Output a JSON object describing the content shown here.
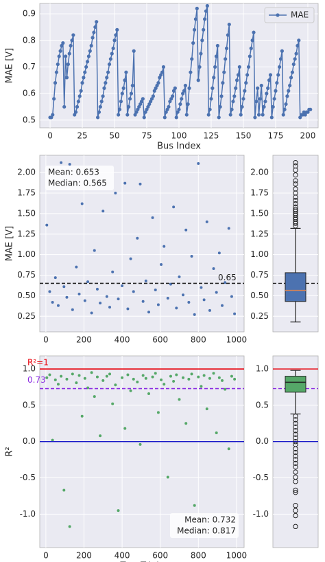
{
  "chart_data": [
    {
      "type": "line",
      "xlabel": "Bus Index",
      "ylabel": "MAE [V]",
      "x": [
        0,
        1,
        2,
        3,
        4,
        5,
        6,
        7,
        8,
        9,
        10,
        11,
        12,
        13,
        14,
        15,
        16,
        17,
        18,
        19,
        20,
        21,
        22,
        23,
        24,
        25,
        26,
        27,
        28,
        29,
        30,
        31,
        32,
        33,
        34,
        35,
        36,
        37,
        38,
        39,
        40,
        41,
        42,
        43,
        44,
        45,
        46,
        47,
        48,
        49,
        50,
        51,
        52,
        53,
        54,
        55,
        56,
        57,
        58,
        59,
        60,
        61,
        62,
        63,
        64,
        65,
        66,
        67,
        68,
        69,
        70,
        71,
        72,
        73,
        74,
        75,
        76,
        77,
        78,
        79,
        80,
        81,
        82,
        83,
        84,
        85,
        86,
        87,
        88,
        89,
        90,
        91,
        92,
        93,
        94,
        95,
        96,
        97,
        98,
        99,
        100,
        101,
        102,
        103,
        104,
        105,
        106,
        107,
        108,
        109,
        110,
        111,
        112,
        113,
        114,
        115,
        116,
        117,
        118,
        119,
        120,
        121,
        122,
        123,
        124,
        125,
        126,
        127,
        128,
        129,
        130,
        131,
        132,
        133,
        134,
        135,
        136,
        137,
        138,
        139,
        140,
        141,
        142,
        143,
        144,
        145,
        146,
        147,
        148,
        149,
        150,
        151,
        152,
        153,
        154,
        155,
        156,
        157,
        158,
        159,
        160,
        161,
        162,
        163,
        164,
        165,
        166,
        167,
        168,
        169,
        170,
        171,
        172,
        173,
        174,
        175,
        176,
        177,
        178,
        179,
        180,
        181,
        182,
        183,
        184,
        185,
        186,
        187,
        188,
        189,
        190,
        191,
        192,
        193,
        194,
        195,
        196,
        197,
        198,
        199,
        200,
        201,
        202
      ],
      "series": [
        {
          "name": "MAE",
          "color": "#4c72b0",
          "values": [
            0.51,
            0.51,
            0.52,
            0.58,
            0.64,
            0.68,
            0.71,
            0.74,
            0.76,
            0.78,
            0.79,
            0.55,
            0.74,
            0.66,
            0.71,
            0.75,
            0.78,
            0.8,
            0.82,
            0.52,
            0.53,
            0.55,
            0.57,
            0.59,
            0.61,
            0.64,
            0.66,
            0.68,
            0.7,
            0.72,
            0.74,
            0.76,
            0.78,
            0.81,
            0.83,
            0.85,
            0.87,
            0.51,
            0.53,
            0.55,
            0.57,
            0.59,
            0.62,
            0.64,
            0.66,
            0.68,
            0.71,
            0.73,
            0.75,
            0.77,
            0.8,
            0.82,
            0.84,
            0.52,
            0.54,
            0.57,
            0.6,
            0.62,
            0.65,
            0.68,
            0.52,
            0.55,
            0.58,
            0.6,
            0.63,
            0.76,
            0.52,
            0.53,
            0.54,
            0.55,
            0.56,
            0.57,
            0.58,
            0.51,
            0.53,
            0.54,
            0.55,
            0.56,
            0.57,
            0.58,
            0.59,
            0.61,
            0.62,
            0.63,
            0.64,
            0.66,
            0.67,
            0.68,
            0.7,
            0.51,
            0.53,
            0.54,
            0.55,
            0.57,
            0.58,
            0.59,
            0.61,
            0.62,
            0.51,
            0.53,
            0.54,
            0.56,
            0.58,
            0.6,
            0.61,
            0.63,
            0.52,
            0.56,
            0.62,
            0.68,
            0.73,
            0.79,
            0.84,
            0.88,
            0.92,
            0.65,
            0.7,
            0.75,
            0.8,
            0.84,
            0.88,
            0.91,
            0.93,
            0.52,
            0.54,
            0.58,
            0.62,
            0.66,
            0.7,
            0.74,
            0.78,
            0.51,
            0.55,
            0.59,
            0.64,
            0.68,
            0.73,
            0.77,
            0.82,
            0.86,
            0.52,
            0.54,
            0.57,
            0.59,
            0.62,
            0.65,
            0.67,
            0.7,
            0.52,
            0.55,
            0.58,
            0.61,
            0.64,
            0.67,
            0.7,
            0.74,
            0.77,
            0.8,
            0.83,
            0.51,
            0.57,
            0.62,
            0.52,
            0.58,
            0.63,
            0.52,
            0.55,
            0.57,
            0.6,
            0.62,
            0.65,
            0.67,
            0.51,
            0.55,
            0.58,
            0.61,
            0.64,
            0.67,
            0.7,
            0.73,
            0.76,
            0.52,
            0.54,
            0.56,
            0.59,
            0.61,
            0.63,
            0.66,
            0.68,
            0.71,
            0.73,
            0.75,
            0.78,
            0.8,
            0.51,
            0.52,
            0.52,
            0.53,
            0.52,
            0.53,
            0.53,
            0.54,
            0.54
          ]
        }
      ],
      "xlim": [
        -8,
        208
      ],
      "ylim": [
        0.471,
        0.939
      ],
      "xticks": [
        0,
        25,
        50,
        75,
        100,
        125,
        150,
        175,
        200
      ],
      "yticks": [
        0.5,
        0.6,
        0.7,
        0.8,
        0.9
      ],
      "grid": true,
      "legend": "upper right"
    },
    {
      "type": "scatter",
      "ylabel": "MAE [V]",
      "color": "#4c72b0",
      "x": [
        5,
        20,
        35,
        50,
        65,
        80,
        95,
        110,
        125,
        140,
        160,
        175,
        190,
        205,
        220,
        240,
        255,
        270,
        285,
        300,
        320,
        335,
        350,
        365,
        380,
        400,
        415,
        430,
        445,
        460,
        480,
        495,
        510,
        525,
        540,
        560,
        575,
        590,
        605,
        620,
        640,
        655,
        670,
        685,
        700,
        720,
        735,
        750,
        765,
        780,
        800,
        815,
        830,
        845,
        860,
        880,
        895,
        910,
        925,
        940,
        960,
        975,
        990
      ],
      "values": [
        1.36,
        0.55,
        0.42,
        0.72,
        0.38,
        2.12,
        0.61,
        0.48,
        2.1,
        0.33,
        0.85,
        0.52,
        1.62,
        0.44,
        0.67,
        0.29,
        1.05,
        0.58,
        0.41,
        1.53,
        0.49,
        0.36,
        0.79,
        1.75,
        0.46,
        0.62,
        1.87,
        0.34,
        0.95,
        0.55,
        1.2,
        1.86,
        0.43,
        0.68,
        0.3,
        1.45,
        0.57,
        0.39,
        0.88,
        1.1,
        0.47,
        0.64,
        1.58,
        0.35,
        0.73,
        0.51,
        1.3,
        0.42,
        0.98,
        0.27,
        2.11,
        0.6,
        0.45,
        1.4,
        0.32,
        0.83,
        0.54,
        1.02,
        0.38,
        0.66,
        1.32,
        0.49,
        0.28
      ],
      "xlim": [
        -32,
        1040
      ],
      "ylim": [
        0.06,
        2.21
      ],
      "xticks": [
        0,
        200,
        400,
        600,
        800,
        1000
      ],
      "yticks": [
        {
          "value": 2.0,
          "label": "2.00"
        },
        {
          "value": 1.75,
          "label": "1.75"
        },
        {
          "value": 1.5,
          "label": "1.50"
        },
        {
          "value": 1.25,
          "label": "1.25"
        },
        {
          "value": 1.0,
          "label": "1.00"
        },
        {
          "value": 0.75,
          "label": "0.75"
        },
        {
          "value": 0.5,
          "label": "0.50"
        },
        {
          "value": 0.25,
          "label": "0.25"
        }
      ],
      "hlines": [
        {
          "value": 0.65,
          "label": "0.65",
          "color": "#222222",
          "style": "dashed"
        }
      ],
      "annotations": [
        "Mean: 0.653",
        "Median: 0.565"
      ],
      "grid": true
    },
    {
      "type": "box",
      "color": "#4c72b0",
      "median_color": "#dd8452",
      "whislo": 0.18,
      "q1": 0.43,
      "med": 0.565,
      "q3": 0.78,
      "whishi": 1.32,
      "fliers": [
        1.35,
        1.38,
        1.4,
        1.43,
        1.45,
        1.48,
        1.5,
        1.53,
        1.55,
        1.58,
        1.62,
        1.66,
        1.7,
        1.75,
        1.8,
        1.86,
        1.9,
        1.97,
        2.03,
        2.08,
        2.12
      ],
      "ylim": [
        0.06,
        2.21
      ],
      "yticks": [
        {
          "value": 2.0,
          "label": "2.00"
        },
        {
          "value": 1.75,
          "label": "1.75"
        },
        {
          "value": 1.5,
          "label": "1.50"
        },
        {
          "value": 1.25,
          "label": "1.25"
        },
        {
          "value": 1.0,
          "label": "1.00"
        },
        {
          "value": 0.75,
          "label": "0.75"
        },
        {
          "value": 0.5,
          "label": "0.50"
        },
        {
          "value": 0.25,
          "label": "0.25"
        }
      ],
      "grid": true
    },
    {
      "type": "scatter",
      "xlabel": "Test Trials",
      "ylabel": "R²",
      "color": "#55a868",
      "x": [
        5,
        20,
        35,
        50,
        65,
        80,
        95,
        110,
        125,
        140,
        160,
        175,
        190,
        205,
        220,
        240,
        255,
        270,
        285,
        300,
        320,
        335,
        350,
        365,
        380,
        400,
        415,
        430,
        445,
        460,
        480,
        495,
        510,
        525,
        540,
        560,
        575,
        590,
        605,
        620,
        640,
        655,
        670,
        685,
        700,
        720,
        735,
        750,
        765,
        780,
        800,
        815,
        830,
        845,
        860,
        880,
        895,
        910,
        925,
        940,
        960,
        975,
        990
      ],
      "values": [
        0.88,
        0.92,
        0.02,
        0.85,
        0.79,
        0.9,
        -0.67,
        0.86,
        -1.17,
        0.93,
        0.81,
        0.91,
        0.35,
        0.87,
        0.74,
        0.95,
        0.62,
        0.89,
        0.08,
        0.84,
        0.9,
        0.93,
        0.52,
        0.78,
        -0.95,
        0.88,
        0.18,
        0.92,
        0.7,
        0.86,
        0.82,
        -0.04,
        0.91,
        0.87,
        0.66,
        0.89,
        0.94,
        0.4,
        0.85,
        0.79,
        -0.49,
        0.9,
        0.83,
        0.92,
        0.58,
        0.88,
        0.25,
        0.86,
        0.93,
        -0.88,
        0.89,
        0.76,
        0.91,
        0.45,
        0.87,
        0.94,
        0.12,
        0.88,
        0.84,
        0.72,
        -0.1,
        0.9,
        0.86
      ],
      "xlim": [
        -32,
        1040
      ],
      "ylim": [
        -1.46,
        1.18
      ],
      "xticks": [
        0,
        200,
        400,
        600,
        800,
        1000
      ],
      "yticks": [
        {
          "value": 1.0,
          "label": "1.0"
        },
        {
          "value": 0.5,
          "label": "0.5"
        },
        {
          "value": 0.0,
          "label": "0.0"
        },
        -0.5,
        {
          "value": -1.0,
          "label": "-1.0"
        }
      ],
      "hlines": [
        {
          "value": 1,
          "label": "R²=1",
          "color": "#e8000b",
          "style": "solid"
        },
        {
          "value": 0.73,
          "label": "0.73",
          "color": "#8b2be2",
          "style": "dashed"
        },
        {
          "value": 0,
          "color": "#1a1ac8",
          "style": "solid"
        }
      ],
      "annotations": [
        "Mean: 0.732",
        "Median: 0.817"
      ],
      "grid": true
    },
    {
      "type": "box",
      "color": "#55a868",
      "median_color": "#222222",
      "whislo": 0.38,
      "q1": 0.68,
      "med": 0.817,
      "q3": 0.9,
      "whishi": 0.98,
      "fliers": [
        0.35,
        0.3,
        0.25,
        0.2,
        0.15,
        0.1,
        0.05,
        0.0,
        -0.04,
        -0.1,
        -0.15,
        -0.2,
        -0.25,
        -0.3,
        -0.35,
        -0.42,
        -0.49,
        -0.55,
        -0.67,
        -0.7,
        -0.88,
        -0.95,
        -1.02,
        -1.17
      ],
      "ylim": [
        -1.46,
        1.18
      ],
      "yticks": [
        {
          "value": 1.0,
          "label": "1.0"
        },
        {
          "value": 0.5,
          "label": "0.5"
        },
        {
          "value": 0.0,
          "label": "0.0"
        },
        -0.5,
        {
          "value": -1.0,
          "label": "-1.0"
        }
      ],
      "grid": true
    }
  ]
}
